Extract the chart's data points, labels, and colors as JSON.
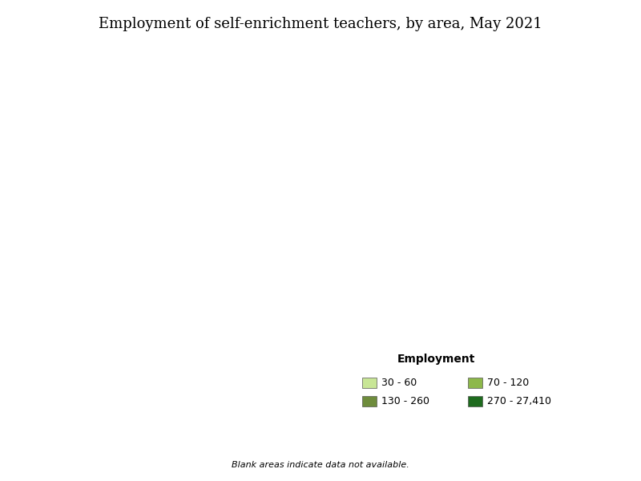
{
  "title": "Employment of self-enrichment teachers, by area, May 2021",
  "legend_title": "Employment",
  "legend_items": [
    {
      "label": "30 - 60",
      "color": "#c8e696"
    },
    {
      "label": "70 - 120",
      "color": "#8db84a"
    },
    {
      "label": "130 - 260",
      "color": "#6e8c3c"
    },
    {
      "label": "270 - 27,410",
      "color": "#1e6b1e"
    }
  ],
  "footnote": "Blank areas indicate data not available.",
  "background_color": "#ffffff",
  "figsize": [
    8.0,
    6.0
  ],
  "dpi": 100,
  "title_fontsize": 13,
  "legend_fontsize": 9,
  "footnote_fontsize": 8
}
